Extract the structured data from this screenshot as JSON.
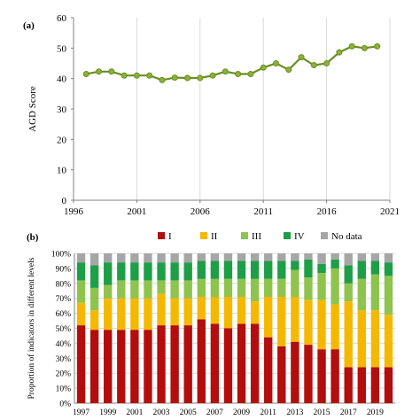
{
  "chart_data": [
    {
      "panel_label": "(a)",
      "type": "line",
      "ylabel": "AGD Score",
      "xlabel": "",
      "x": [
        1997,
        1998,
        1999,
        2000,
        2001,
        2002,
        2003,
        2004,
        2005,
        2006,
        2007,
        2008,
        2009,
        2010,
        2011,
        2012,
        2013,
        2014,
        2015,
        2016,
        2017,
        2018,
        2019,
        2020
      ],
      "series": [
        {
          "values": [
            41.5,
            42.3,
            42.3,
            41.0,
            41.0,
            41.0,
            39.5,
            40.3,
            40.2,
            40.2,
            41.0,
            42.3,
            41.5,
            41.5,
            43.6,
            45.0,
            42.9,
            47.0,
            44.4,
            45.0,
            48.6,
            50.6,
            50.0,
            50.6
          ]
        }
      ],
      "xticks": [
        "1996",
        "2001",
        "2006",
        "2011",
        "2016",
        "2021"
      ],
      "yticks": [
        "0",
        "10",
        "20",
        "30",
        "40",
        "50",
        "60"
      ],
      "xlim": [
        1996,
        2021
      ],
      "ylim": [
        0,
        60
      ],
      "grid": "vertical",
      "line_color": "#6b8e23",
      "marker_color": "#8cb03c"
    },
    {
      "panel_label": "(b)",
      "type": "bar",
      "stacked": true,
      "ylabel": "Proportion of indicators in different levels",
      "categories": [
        "1997",
        "1998",
        "1999",
        "2000",
        "2001",
        "2002",
        "2003",
        "2004",
        "2005",
        "2006",
        "2007",
        "2008",
        "2009",
        "2010",
        "2011",
        "2012",
        "2013",
        "2014",
        "2015",
        "2016",
        "2017",
        "2018",
        "2019",
        "2020"
      ],
      "xtick_labels": [
        "1997",
        "",
        "1999",
        "",
        "2001",
        "",
        "2003",
        "",
        "2005",
        "",
        "2007",
        "",
        "2009",
        "",
        "2011",
        "",
        "2013",
        "",
        "2015",
        "",
        "2017",
        "",
        "2019",
        ""
      ],
      "yticks": [
        "0%",
        "10%",
        "20%",
        "30%",
        "40%",
        "50%",
        "60%",
        "70%",
        "80%",
        "90%",
        "100%"
      ],
      "legend_position": "top",
      "series": [
        {
          "name": "I",
          "color": "#b30d0d",
          "values": [
            52,
            49,
            49,
            49,
            49,
            49,
            52,
            52,
            52,
            56,
            53,
            50,
            53,
            53,
            44,
            38,
            41,
            39,
            36,
            36,
            24,
            24,
            24,
            24
          ]
        },
        {
          "name": "II",
          "color": "#f5b800",
          "values": [
            15,
            13,
            21,
            21,
            21,
            21,
            21,
            18,
            18,
            15,
            18,
            21,
            18,
            15,
            27,
            33,
            30,
            30,
            33,
            30,
            44,
            38,
            38,
            35
          ]
        },
        {
          "name": "III",
          "color": "#8ec44e",
          "values": [
            15,
            15,
            9,
            12,
            12,
            12,
            9,
            12,
            12,
            12,
            12,
            12,
            12,
            15,
            12,
            12,
            18,
            15,
            18,
            24,
            12,
            21,
            24,
            26
          ]
        },
        {
          "name": "IV",
          "color": "#1e9e47",
          "values": [
            12,
            15,
            15,
            12,
            12,
            12,
            12,
            12,
            12,
            12,
            12,
            12,
            12,
            12,
            12,
            12,
            6,
            12,
            6,
            6,
            12,
            12,
            9,
            9
          ]
        },
        {
          "name": "No data",
          "color": "#a6a6a6",
          "values": [
            6,
            8,
            6,
            6,
            6,
            6,
            6,
            6,
            6,
            5,
            5,
            5,
            5,
            5,
            5,
            5,
            5,
            4,
            7,
            4,
            8,
            5,
            5,
            6
          ]
        }
      ]
    }
  ]
}
